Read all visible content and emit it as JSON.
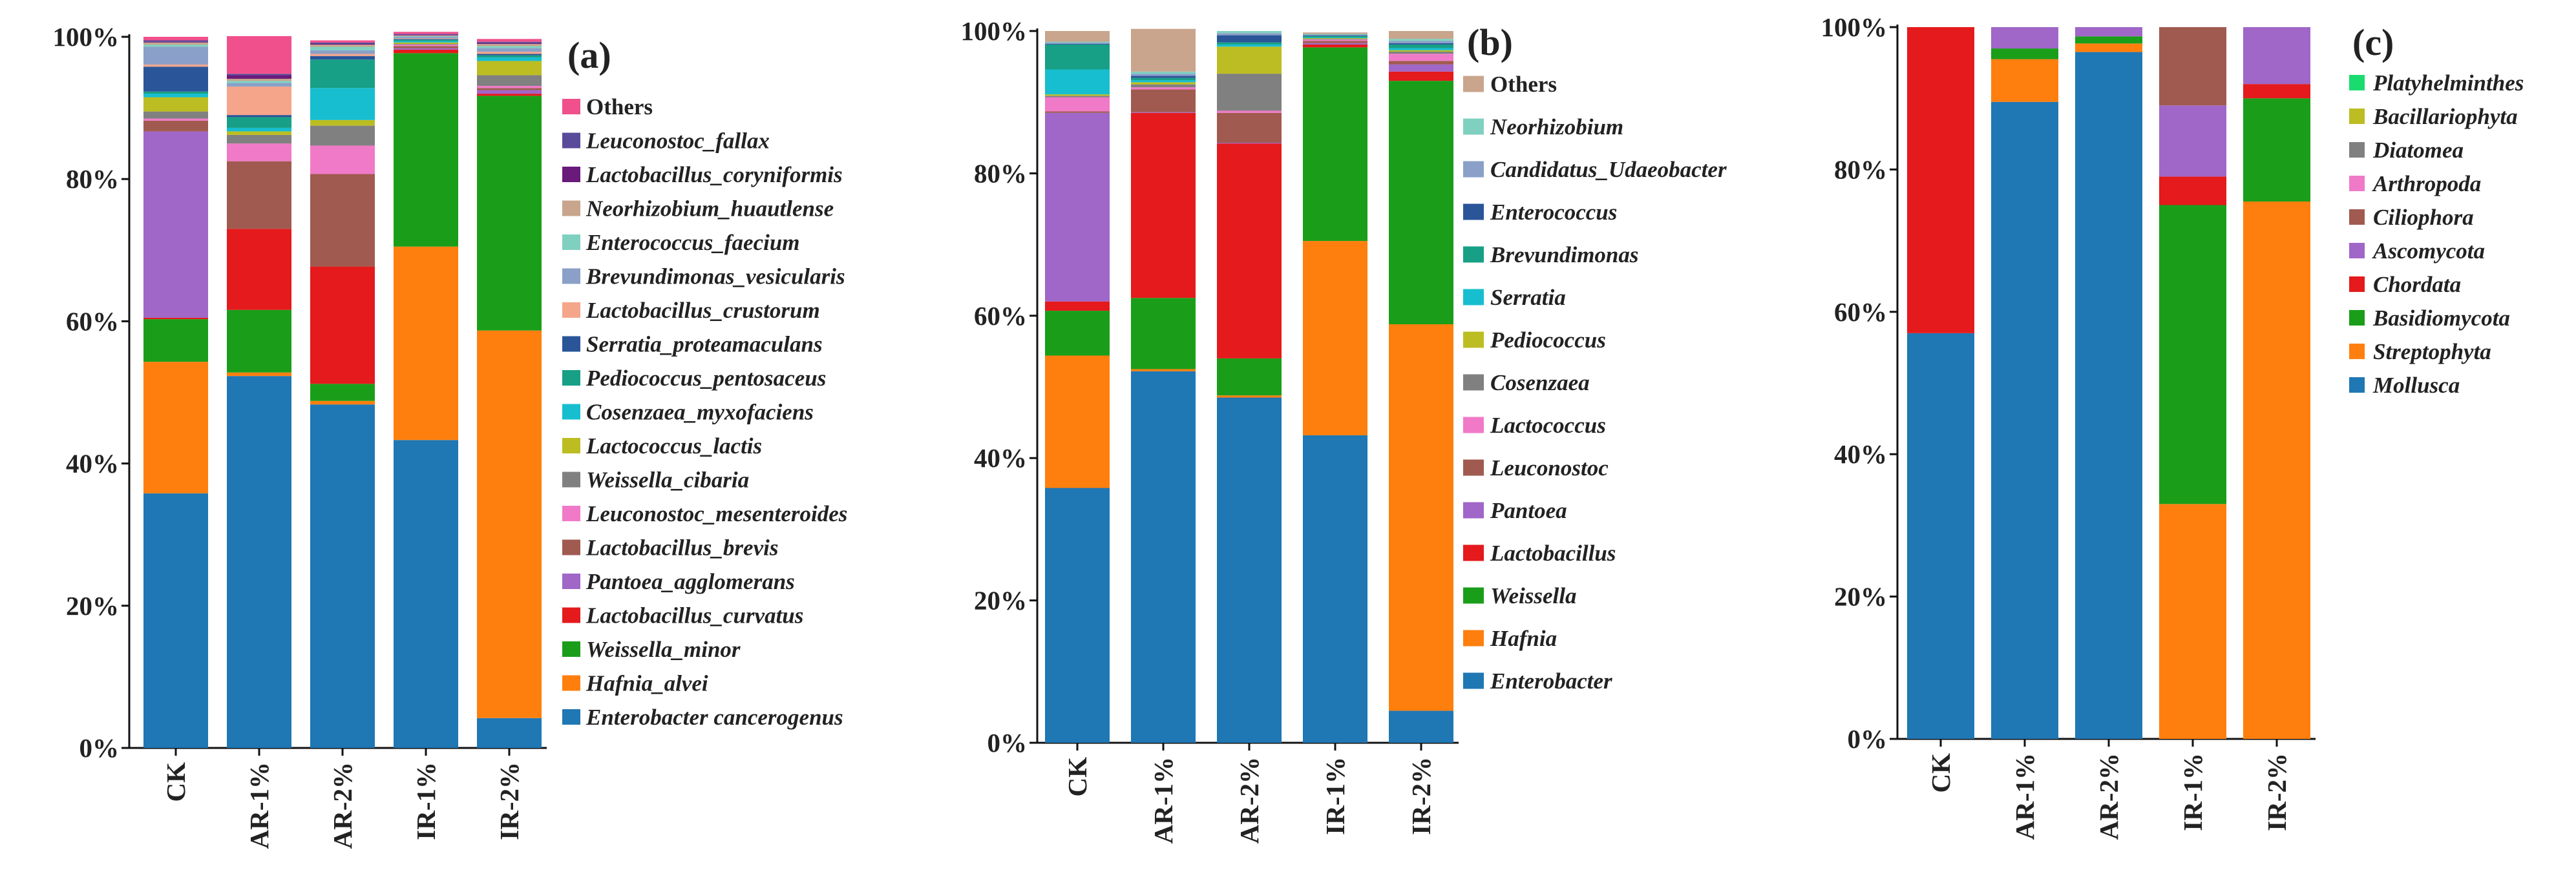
{
  "chart_data": [
    {
      "type": "bar",
      "stacked": true,
      "panel_label": "(a)",
      "categories": [
        "CK",
        "AR-1%",
        "AR-2%",
        "IR-1%",
        "IR-2%"
      ],
      "y_ticks": [
        "0%",
        "20%",
        "40%",
        "60%",
        "80%",
        "100%"
      ],
      "ylim": [
        0,
        100
      ],
      "legend_position": "right",
      "series": [
        {
          "name": "Enterobacter cancerogenus",
          "color": "#1f77b4",
          "values": [
            35.8,
            52.3,
            48.3,
            43.3,
            4.2
          ]
        },
        {
          "name": "Hafnia_alvei",
          "color": "#ff7f0e",
          "values": [
            18.5,
            0.5,
            0.5,
            27.2,
            54.5
          ]
        },
        {
          "name": "Weissella_minor",
          "color": "#1a9e1a",
          "values": [
            6.0,
            8.8,
            2.4,
            27.2,
            33.0
          ]
        },
        {
          "name": "Lactobacillus_curvatus",
          "color": "#e41a1c",
          "values": [
            0.2,
            11.4,
            16.5,
            0.5,
            0.3
          ]
        },
        {
          "name": "Pantoea_agglomerans",
          "color": "#a066c8",
          "values": [
            26.2,
            0.0,
            0.0,
            0.2,
            0.5
          ]
        },
        {
          "name": "Lactobacillus_brevis",
          "color": "#a05a50",
          "values": [
            1.5,
            9.5,
            13.0,
            0.3,
            0.3
          ]
        },
        {
          "name": "Leuconostoc_mesenteroides",
          "color": "#f07ac8",
          "values": [
            0.3,
            2.5,
            4.0,
            0.2,
            0.3
          ]
        },
        {
          "name": "Weissella_cibaria",
          "color": "#808080",
          "values": [
            1.0,
            1.2,
            2.8,
            0.1,
            1.5
          ]
        },
        {
          "name": "Lactococcus_lactis",
          "color": "#bcbd22",
          "values": [
            2.0,
            0.5,
            0.8,
            0.2,
            2.0
          ]
        },
        {
          "name": "Cosenzaea_myxofaciens",
          "color": "#17becf",
          "values": [
            0.5,
            0.5,
            4.5,
            0.2,
            0.5
          ]
        },
        {
          "name": "Pediococcus_pentosaceus",
          "color": "#17a086",
          "values": [
            0.3,
            1.5,
            4.0,
            0.2,
            0.3
          ]
        },
        {
          "name": "Serratia_proteamaculans",
          "color": "#2a5599",
          "values": [
            3.5,
            0.3,
            0.5,
            0.1,
            0.2
          ]
        },
        {
          "name": "Lactobacillus_crustorum",
          "color": "#f5a58a",
          "values": [
            0.3,
            4.0,
            0.3,
            0.1,
            0.3
          ]
        },
        {
          "name": "Brevundimonas_vesicularis",
          "color": "#8aa0c8",
          "values": [
            2.5,
            0.5,
            0.5,
            0.2,
            0.5
          ]
        },
        {
          "name": "Enterococcus_faecium",
          "color": "#80d0c0",
          "values": [
            0.3,
            0.3,
            0.5,
            0.1,
            0.3
          ]
        },
        {
          "name": "Neorhizobium_huautlense",
          "color": "#c8a58c",
          "values": [
            0.3,
            0.3,
            0.3,
            0.1,
            0.3
          ]
        },
        {
          "name": "Lactobacillus_coryniformis",
          "color": "#6a1a7a",
          "values": [
            0.1,
            0.5,
            0.1,
            0.1,
            0.1
          ]
        },
        {
          "name": "Leuconostoc_fallax",
          "color": "#5a4a9a",
          "values": [
            0.2,
            0.2,
            0.2,
            0.1,
            0.2
          ]
        },
        {
          "name": "Others",
          "color": "#f0508c",
          "values": [
            0.5,
            5.3,
            0.3,
            0.3,
            0.4
          ]
        }
      ]
    },
    {
      "type": "bar",
      "stacked": true,
      "panel_label": "(b)",
      "categories": [
        "CK",
        "AR-1%",
        "AR-2%",
        "IR-1%",
        "IR-2%"
      ],
      "y_ticks": [
        "0%",
        "20%",
        "40%",
        "60%",
        "80%",
        "100%"
      ],
      "ylim": [
        0,
        100
      ],
      "legend_position": "right",
      "series": [
        {
          "name": "Enterobacter",
          "color": "#1f77b4",
          "values": [
            35.8,
            52.2,
            48.5,
            43.2,
            4.5
          ]
        },
        {
          "name": "Hafnia",
          "color": "#ff7f0e",
          "values": [
            18.6,
            0.3,
            0.3,
            27.3,
            54.3
          ]
        },
        {
          "name": "Weissella",
          "color": "#1a9e1a",
          "values": [
            6.3,
            10.0,
            5.2,
            27.2,
            34.2
          ]
        },
        {
          "name": "Lactobacillus",
          "color": "#e41a1c",
          "values": [
            1.3,
            26.0,
            30.2,
            0.4,
            1.3
          ]
        },
        {
          "name": "Pantoea",
          "color": "#a066c8",
          "values": [
            26.5,
            0.1,
            0.1,
            0.2,
            1.0
          ]
        },
        {
          "name": "Leuconostoc",
          "color": "#a05a50",
          "values": [
            0.2,
            3.2,
            4.2,
            0.3,
            0.5
          ]
        },
        {
          "name": "Lactococcus",
          "color": "#f07ac8",
          "values": [
            2.0,
            0.3,
            0.3,
            0.2,
            1.0
          ]
        },
        {
          "name": "Cosenzaea",
          "color": "#808080",
          "values": [
            0.2,
            0.4,
            5.2,
            0.1,
            0.3
          ]
        },
        {
          "name": "Pediococcus",
          "color": "#bcbd22",
          "values": [
            0.2,
            0.3,
            3.8,
            0.1,
            0.2
          ]
        },
        {
          "name": "Serratia",
          "color": "#17becf",
          "values": [
            3.5,
            0.3,
            0.3,
            0.1,
            0.3
          ]
        },
        {
          "name": "Brevundimonas",
          "color": "#17a086",
          "values": [
            3.5,
            0.3,
            0.3,
            0.2,
            0.5
          ]
        },
        {
          "name": "Enterococcus",
          "color": "#2a5599",
          "values": [
            0.1,
            0.3,
            1.0,
            0.1,
            0.2
          ]
        },
        {
          "name": "Candidatus_Udaeobacter",
          "color": "#8aa0c8",
          "values": [
            0.2,
            0.3,
            0.3,
            0.1,
            0.3
          ]
        },
        {
          "name": "Neorhizobium",
          "color": "#80d0c0",
          "values": [
            0.1,
            0.3,
            0.3,
            0.1,
            0.3
          ]
        },
        {
          "name": "Others",
          "color": "#c8a58c",
          "values": [
            1.5,
            6.0,
            0.0,
            0.2,
            1.1
          ]
        }
      ]
    },
    {
      "type": "bar",
      "stacked": true,
      "panel_label": "(c)",
      "categories": [
        "CK",
        "AR-1%",
        "AR-2%",
        "IR-1%",
        "IR-2%"
      ],
      "y_ticks": [
        "0%",
        "20%",
        "40%",
        "60%",
        "80%",
        "100%"
      ],
      "ylim": [
        0,
        100
      ],
      "legend_position": "right",
      "series": [
        {
          "name": "Mollusca",
          "color": "#1f77b4",
          "values": [
            57.0,
            89.5,
            96.5,
            0.0,
            0.0
          ]
        },
        {
          "name": "Streptophyta",
          "color": "#ff7f0e",
          "values": [
            0.0,
            6.0,
            1.2,
            33.0,
            75.5
          ]
        },
        {
          "name": "Basidiomycota",
          "color": "#1a9e1a",
          "values": [
            0.0,
            1.5,
            1.0,
            42.0,
            14.5
          ]
        },
        {
          "name": "Chordata",
          "color": "#e41a1c",
          "values": [
            43.0,
            0.0,
            0.0,
            4.0,
            2.0
          ]
        },
        {
          "name": "Ascomycota",
          "color": "#a066c8",
          "values": [
            0.0,
            3.0,
            1.3,
            10.0,
            8.0
          ]
        },
        {
          "name": "Ciliophora",
          "color": "#a05a50",
          "values": [
            0.0,
            0.0,
            0.0,
            11.0,
            0.0
          ]
        },
        {
          "name": "Arthropoda",
          "color": "#f07ac8",
          "values": [
            0.0,
            0.0,
            0.0,
            0.0,
            0.0
          ]
        },
        {
          "name": "Diatomea",
          "color": "#808080",
          "values": [
            0.0,
            0.0,
            0.0,
            0.0,
            0.0
          ]
        },
        {
          "name": "Bacillariophyta",
          "color": "#bcbd22",
          "values": [
            0.0,
            0.0,
            0.0,
            0.0,
            0.0
          ]
        },
        {
          "name": "Platyhelminthes",
          "color": "#1adc6e",
          "values": [
            0.0,
            0.0,
            0.0,
            0.0,
            0.0
          ]
        }
      ]
    }
  ]
}
